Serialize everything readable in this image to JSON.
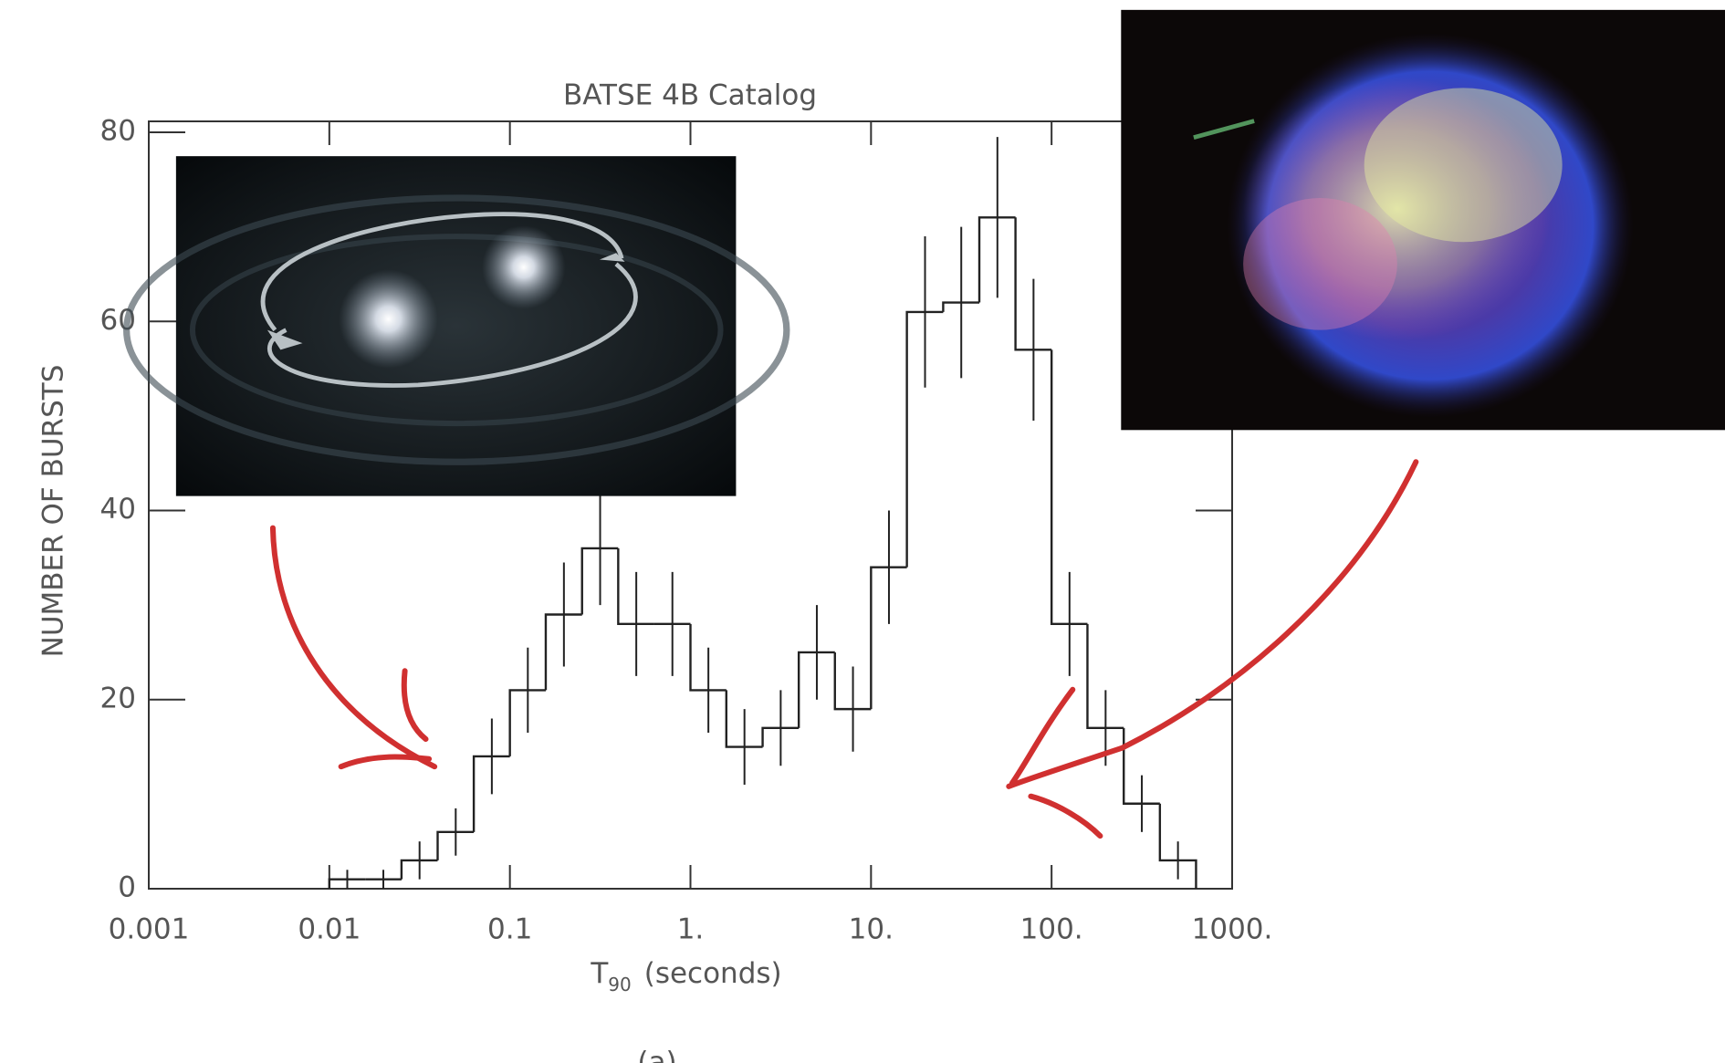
{
  "chart_data": {
    "type": "histogram",
    "title": "BATSE 4B Catalog",
    "y_label": "NUMBER OF BURSTS",
    "x_label_main": "T",
    "x_label_sub": "90",
    "x_label_unit": "(seconds)",
    "panel_label": "(a)",
    "bins": [
      0.01,
      0.0158,
      0.0251,
      0.0398,
      0.0631,
      0.1,
      0.158,
      0.251,
      0.398,
      0.631,
      1,
      1.58,
      2.51,
      3.98,
      6.31,
      10,
      15.8,
      25.1,
      39.8,
      63.1,
      100,
      158,
      251,
      398,
      631
    ],
    "values": [
      1,
      1,
      3,
      6,
      14,
      21,
      29,
      36,
      28,
      28,
      21,
      15,
      17,
      25,
      19,
      34,
      61,
      62,
      71,
      57,
      28,
      17,
      9,
      3
    ],
    "errors": [
      1,
      1,
      2,
      2.5,
      4,
      4.5,
      5.5,
      6,
      5.5,
      5.5,
      4.5,
      4,
      4,
      5,
      4.5,
      6,
      8,
      8,
      8.5,
      7.5,
      5.5,
      4,
      3,
      2
    ],
    "color": "#222222",
    "xscale": "log",
    "xlim": [
      0.001,
      1000
    ],
    "xticks": [
      0.001,
      0.01,
      0.1,
      {
        "value": 1,
        "label": "1."
      },
      {
        "value": 10,
        "label": "10."
      },
      {
        "value": 100,
        "label": "100."
      },
      {
        "value": 1000,
        "label": "1000."
      }
    ],
    "ylim": [
      0,
      80
    ],
    "yticks": [
      0,
      20,
      40,
      60,
      80
    ]
  }
}
